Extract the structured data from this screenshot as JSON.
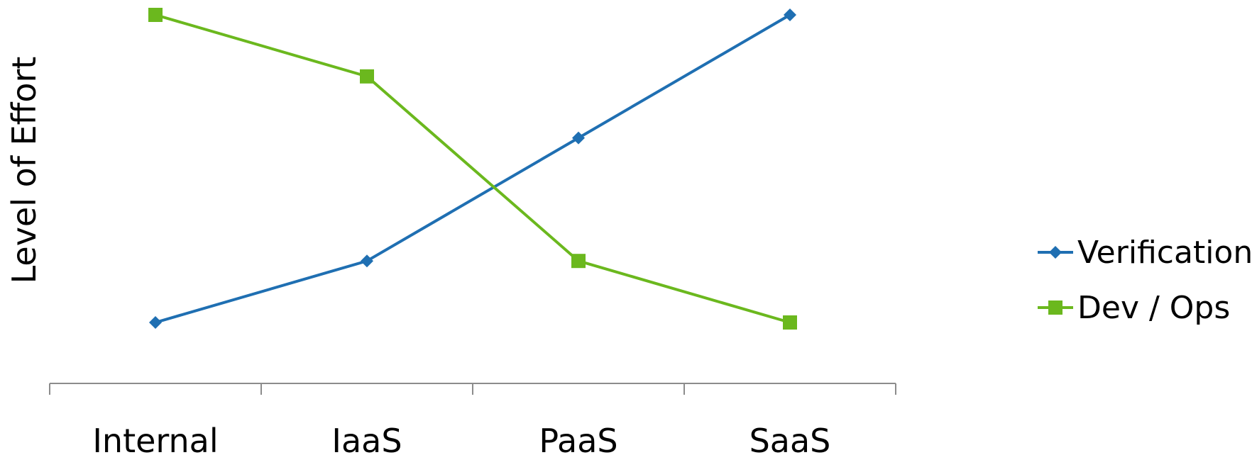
{
  "chart_data": {
    "type": "line",
    "categories": [
      "Internal",
      "IaaS",
      "PaaS",
      "SaaS"
    ],
    "series": [
      {
        "name": "Verification",
        "values": [
          1,
          2,
          4,
          6
        ],
        "color": "#1f6fb2",
        "marker": "diamond"
      },
      {
        "name": "Dev / Ops",
        "values": [
          6,
          5,
          2,
          1
        ],
        "color": "#6bb81e",
        "marker": "square"
      }
    ],
    "title": "",
    "xlabel": "",
    "ylabel": "Level of Effort",
    "ylim": [
      0,
      6
    ],
    "grid": false,
    "y_tick_labels": false,
    "legend_position": "right"
  }
}
